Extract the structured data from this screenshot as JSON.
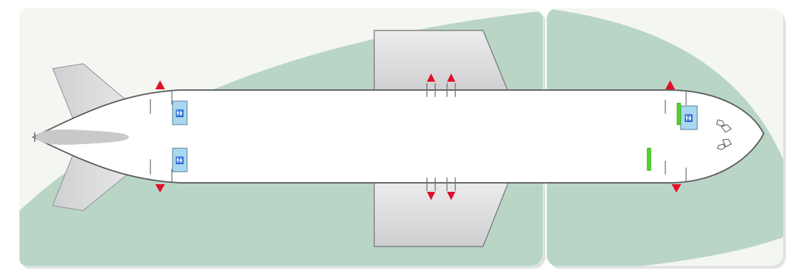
{
  "colors": {
    "panel": "#f3f6f1",
    "sweep": "#b9d5c6",
    "fuselage": "#ffffff",
    "outline": "#5f6062",
    "wing": "#d9d9db",
    "lavatory": "#a9d7ee",
    "galley": "#4fd81e",
    "exit_arrow": "#e0102a",
    "shadow": "#d8dcda"
  },
  "icons": {
    "exit": "triangle-arrow-icon",
    "lavatory": "restroom-person-icon",
    "cockpit_seat": "cockpit-seat-icon"
  },
  "lavatory_symbol": "🚻"
}
